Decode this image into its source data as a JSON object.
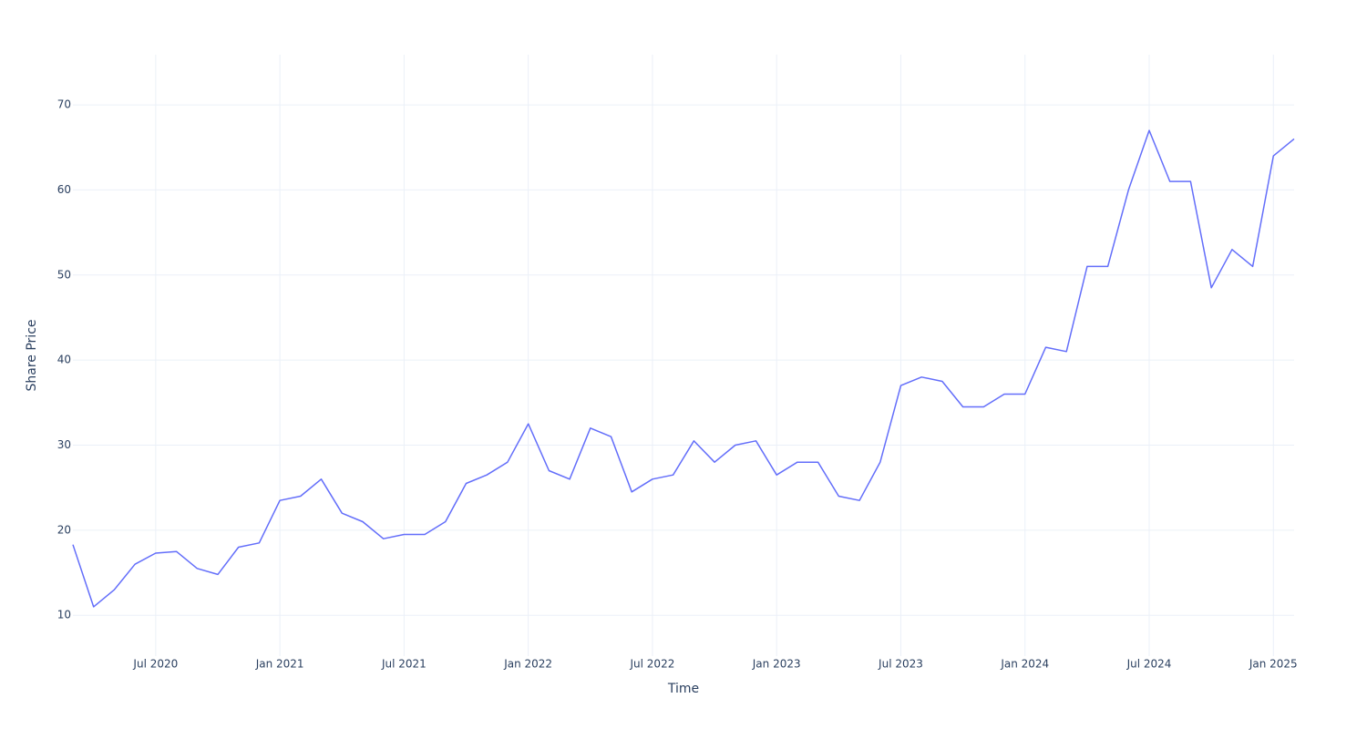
{
  "chart_data": {
    "type": "line",
    "x_label": "Time",
    "y_label": "Share Price",
    "x": [
      "2020-03",
      "2020-04",
      "2020-05",
      "2020-06",
      "2020-07",
      "2020-08",
      "2020-09",
      "2020-10",
      "2020-11",
      "2020-12",
      "2021-01",
      "2021-02",
      "2021-03",
      "2021-04",
      "2021-05",
      "2021-06",
      "2021-07",
      "2021-08",
      "2021-09",
      "2021-10",
      "2021-11",
      "2021-12",
      "2022-01",
      "2022-02",
      "2022-03",
      "2022-04",
      "2022-05",
      "2022-06",
      "2022-07",
      "2022-08",
      "2022-09",
      "2022-10",
      "2022-11",
      "2022-12",
      "2023-01",
      "2023-02",
      "2023-03",
      "2023-04",
      "2023-05",
      "2023-06",
      "2023-07",
      "2023-08",
      "2023-09",
      "2023-10",
      "2023-11",
      "2023-12",
      "2024-01",
      "2024-02",
      "2024-03",
      "2024-04",
      "2024-05",
      "2024-06",
      "2024-07",
      "2024-08",
      "2024-09",
      "2024-10",
      "2024-11",
      "2024-12",
      "2025-01",
      "2025-02"
    ],
    "series": [
      {
        "name": "Share Price",
        "color": "#636efa",
        "values": [
          18.3,
          11,
          13,
          16,
          17.3,
          17.5,
          15.5,
          14.8,
          18,
          18.5,
          23.5,
          24,
          26,
          22,
          21,
          19,
          19.5,
          19.5,
          21,
          25.5,
          26.5,
          28,
          32.5,
          27,
          26,
          32,
          31,
          24.5,
          26,
          26.5,
          30.5,
          28,
          30,
          30.5,
          26.5,
          28,
          28,
          24,
          23.5,
          28,
          37,
          38,
          37.5,
          34.5,
          34.5,
          36,
          36,
          41.5,
          41,
          51,
          51,
          60,
          67,
          61,
          61,
          48.5,
          53,
          51,
          64,
          66
        ]
      }
    ],
    "xlim": [
      "2020-03",
      "2025-02"
    ],
    "xticks": [
      {
        "value": "2020-07",
        "label": "Jul 2020"
      },
      {
        "value": "2021-01",
        "label": "Jan 2021"
      },
      {
        "value": "2021-07",
        "label": "Jul 2021"
      },
      {
        "value": "2022-01",
        "label": "Jan 2022"
      },
      {
        "value": "2022-07",
        "label": "Jul 2022"
      },
      {
        "value": "2023-01",
        "label": "Jan 2023"
      },
      {
        "value": "2023-07",
        "label": "Jul 2023"
      },
      {
        "value": "2024-01",
        "label": "Jan 2024"
      },
      {
        "value": "2024-07",
        "label": "Jul 2024"
      },
      {
        "value": "2025-01",
        "label": "Jan 2025"
      }
    ],
    "ylim": [
      5.2,
      75.9
    ],
    "yticks": [
      10,
      20,
      30,
      40,
      50,
      60,
      70
    ],
    "grid": true
  }
}
